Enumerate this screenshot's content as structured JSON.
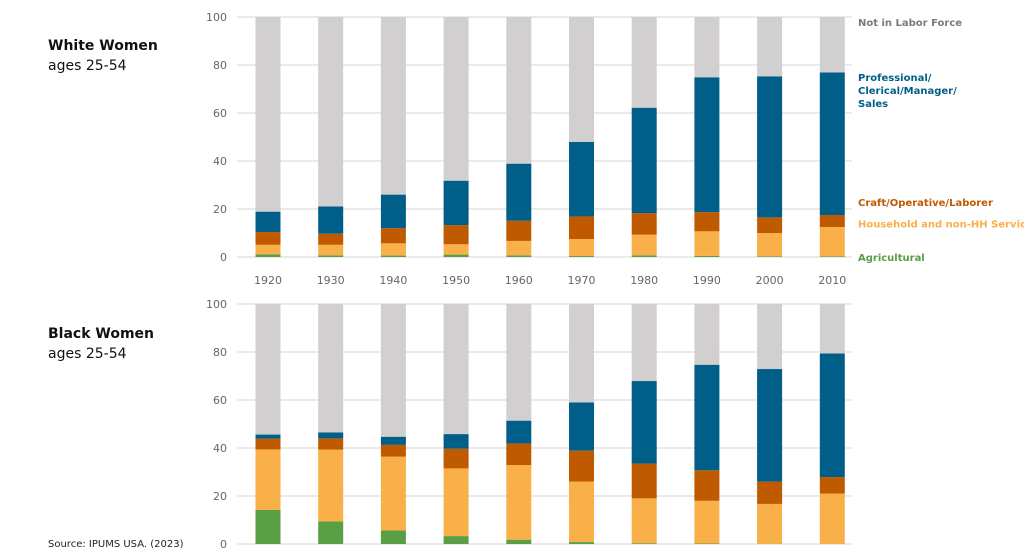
{
  "source": "Source: IPUMS USA. (2023)",
  "colors": {
    "Agricultural": "#5a9e46",
    "Household and non-HH Service": "#fab049",
    "Craft/Operative/Laborer": "#c05a00",
    "Professional/Clerical/Manager/Sales": "#005f88",
    "Not in Labor Force": "#d1cfd0"
  },
  "legend": [
    {
      "key": "Not in Labor Force",
      "lines": [
        "Not in Labor Force"
      ],
      "value": 100
    },
    {
      "key": "Professional/Clerical/Manager/Sales",
      "lines": [
        "Professional/",
        "Clerical/Manager/",
        "Sales"
      ],
      "value": 77
    },
    {
      "key": "Craft/Operative/Laborer",
      "lines": [
        "Craft/Operative/Laborer"
      ],
      "value": 25
    },
    {
      "key": "Household and non-HH Service",
      "lines": [
        "Household and non-HH Service"
      ],
      "value": 16
    },
    {
      "key": "Agricultural",
      "lines": [
        "Agricultural"
      ],
      "value": 2
    }
  ],
  "chart_data": [
    {
      "type": "bar",
      "stacked": true,
      "title": "White Women",
      "subtitle": "ages 25-54",
      "categories": [
        "1920",
        "1930",
        "1940",
        "1950",
        "1960",
        "1970",
        "1980",
        "1990",
        "2000",
        "2010"
      ],
      "show_x_ticks": true,
      "ylim": [
        0,
        100
      ],
      "yticks": [
        0,
        20,
        40,
        60,
        80,
        100
      ],
      "grid": true,
      "legend_position": "right",
      "series": [
        {
          "name": "Agricultural",
          "values": [
            1.1,
            0.7,
            0.6,
            1.0,
            0.7,
            0.4,
            0.7,
            0.5,
            0.3,
            0.3
          ]
        },
        {
          "name": "Household and non-HH Service",
          "values": [
            4.0,
            4.4,
            5.1,
            4.3,
            6.0,
            7.1,
            8.6,
            10.2,
            9.7,
            12.2
          ]
        },
        {
          "name": "Craft/Operative/Laborer",
          "values": [
            5.3,
            4.6,
            6.3,
            8.0,
            8.4,
            9.4,
            9.0,
            8.0,
            6.5,
            5.0
          ]
        },
        {
          "name": "Professional/Clerical/Manager/Sales",
          "values": [
            8.5,
            11.4,
            14.0,
            18.5,
            23.8,
            31.1,
            43.9,
            56.2,
            58.8,
            59.4
          ]
        },
        {
          "name": "Not in Labor Force",
          "values": [
            81.1,
            78.9,
            74.0,
            68.2,
            61.1,
            52.0,
            37.8,
            25.1,
            24.7,
            23.1
          ]
        }
      ]
    },
    {
      "type": "bar",
      "stacked": true,
      "title": "Black Women",
      "subtitle": "ages 25-54",
      "categories": [
        "1920",
        "1930",
        "1940",
        "1950",
        "1960",
        "1970",
        "1980",
        "1990",
        "2000",
        "2010"
      ],
      "show_x_ticks": false,
      "ylim": [
        0,
        100
      ],
      "yticks": [
        0,
        20,
        40,
        60,
        80,
        100
      ],
      "grid": true,
      "series": [
        {
          "name": "Agricultural",
          "values": [
            14.2,
            9.4,
            5.7,
            3.3,
            1.8,
            0.8,
            0.3,
            0.2,
            0.1,
            0.1
          ]
        },
        {
          "name": "Household and non-HH Service",
          "values": [
            25.2,
            29.9,
            30.7,
            28.2,
            31.1,
            25.2,
            18.7,
            17.8,
            16.6,
            20.9
          ]
        },
        {
          "name": "Craft/Operative/Laborer",
          "values": [
            4.5,
            4.7,
            4.9,
            8.2,
            9.0,
            12.9,
            14.5,
            12.7,
            9.3,
            6.9
          ]
        },
        {
          "name": "Professional/Clerical/Manager/Sales",
          "values": [
            1.7,
            2.5,
            3.4,
            6.1,
            9.5,
            20.1,
            34.4,
            44.0,
            46.9,
            51.5
          ]
        },
        {
          "name": "Not in Labor Force",
          "values": [
            54.4,
            53.5,
            55.3,
            54.2,
            48.6,
            41.0,
            32.1,
            25.3,
            27.1,
            20.6
          ]
        }
      ]
    }
  ]
}
